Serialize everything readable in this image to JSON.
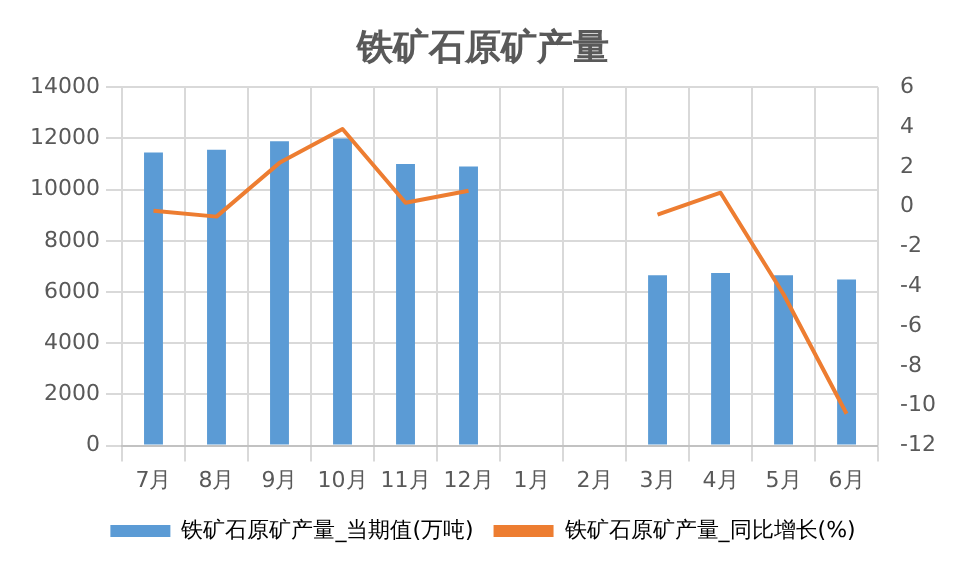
{
  "chart_data": {
    "type": "bar",
    "title": "铁矿石原矿产量",
    "categories": [
      "7月",
      "8月",
      "9月",
      "10月",
      "11月",
      "12月",
      "1月",
      "2月",
      "3月",
      "4月",
      "5月",
      "6月"
    ],
    "series": [
      {
        "name": "铁矿石原矿产量_当期值(万吨)",
        "color": "#5b9bd5",
        "values": [
          11450,
          11560,
          11890,
          12000,
          11000,
          10900,
          null,
          null,
          6650,
          6740,
          6650,
          6490
        ]
      },
      {
        "name": "铁矿石原矿产量_同比增长(%)",
        "type": "line",
        "axis": "y2",
        "color": "#ed7d31",
        "values": [
          -0.2,
          -0.5,
          2.2,
          3.9,
          0.2,
          0.8,
          null,
          null,
          -0.4,
          0.7,
          -4.4,
          -10.4
        ]
      }
    ],
    "ylim": [
      0,
      14000
    ],
    "yticks": [
      0,
      2000,
      4000,
      6000,
      8000,
      10000,
      12000,
      14000
    ],
    "y2lim": [
      -12,
      6
    ],
    "y2ticks": [
      -12,
      -10,
      -8,
      -6,
      -4,
      -2,
      0,
      2,
      4,
      6
    ],
    "grid": true,
    "legend": "bottom",
    "marker": "none"
  }
}
